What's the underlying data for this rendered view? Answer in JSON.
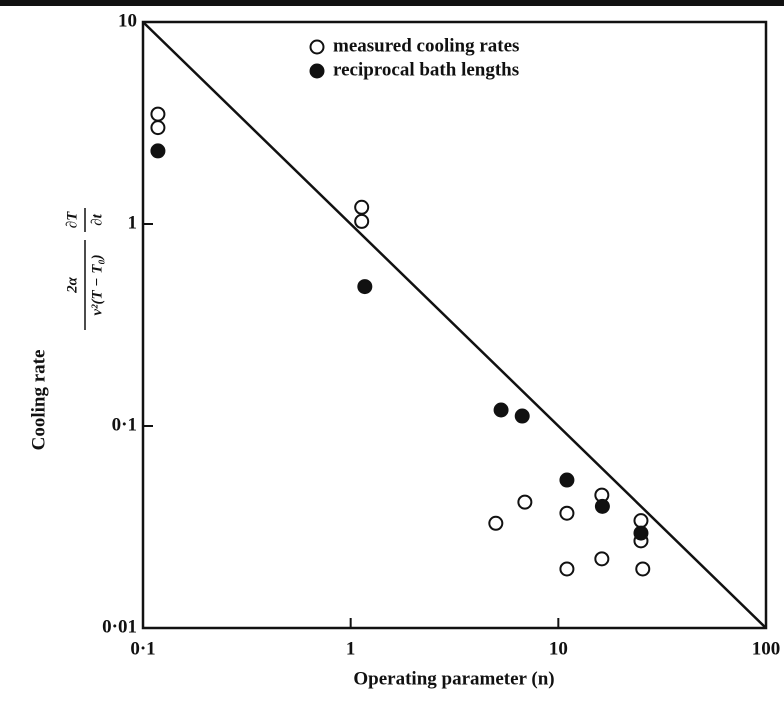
{
  "chart_data": {
    "type": "scatter",
    "xlabel": "Operating parameter (n)",
    "ylabel": "Cooling rate",
    "ylabel_formula": {
      "numerator": "2α",
      "denominator": "v²(T − T₀)",
      "derivative_top": "∂T",
      "derivative_bottom": "∂t"
    },
    "xscale": "log",
    "yscale": "log",
    "xlim": [
      0.1,
      100
    ],
    "ylim": [
      0.01,
      10
    ],
    "xticks": [
      {
        "value": 0.1,
        "label": "0·1"
      },
      1,
      10,
      100
    ],
    "yticks": [
      {
        "value": 0.01,
        "label": "0·01"
      },
      {
        "value": 0.1,
        "label": "0·1"
      },
      1,
      10
    ],
    "legend": "upper center",
    "reference_line": {
      "x": [
        0.1,
        100
      ],
      "values": [
        10,
        0.01
      ],
      "color": "#111"
    },
    "series": [
      {
        "name": "measured cooling rates",
        "marker": "open",
        "color": "#111",
        "x": [
          0.118,
          0.118,
          1.13,
          1.13,
          5.0,
          6.9,
          11,
          11,
          16.2,
          16.2,
          25,
          25,
          25.5
        ],
        "values": [
          3.5,
          3.0,
          1.21,
          1.03,
          0.033,
          0.042,
          0.037,
          0.0196,
          0.0455,
          0.022,
          0.034,
          0.027,
          0.0196
        ]
      },
      {
        "name": "reciprocal bath lengths",
        "marker": "filled",
        "color": "#111",
        "x": [
          0.118,
          1.17,
          5.3,
          6.7,
          11,
          16.3,
          25
        ],
        "values": [
          2.3,
          0.49,
          0.12,
          0.112,
          0.054,
          0.04,
          0.0295
        ]
      }
    ]
  }
}
